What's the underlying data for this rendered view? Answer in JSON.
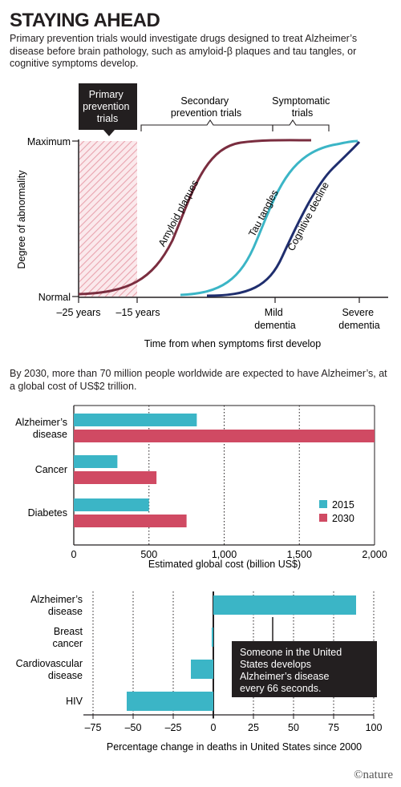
{
  "header": {
    "title": "STAYING AHEAD",
    "subtitle": "Primary prevention trials would investigate drugs designed to treat Alzheimer’s disease before brain pathology, such as amyloid-β plaques and tau tangles, or cognitive symptoms develop."
  },
  "colors": {
    "amyloid": "#7a2d3f",
    "tau": "#3bb5c6",
    "cognitive": "#1f2e6e",
    "bar2015": "#3bb5c6",
    "bar2030": "#d04a63",
    "hatch": "#e8a3ae"
  },
  "chart_data": [
    {
      "type": "line",
      "ylabel": "Degree of abnormality",
      "xlabel": "Time from when symptoms first develop",
      "y_ticks": [
        "Maximum",
        "Normal"
      ],
      "x_ticks": [
        "–25 years",
        "–15 years",
        "Mild dementia",
        "Severe dementia"
      ],
      "phases": {
        "primary": "Primary prevention trials",
        "secondary": "Secondary prevention trials",
        "symptomatic": "Symptomatic trials"
      },
      "series": [
        {
          "name": "Amyloid plaques",
          "color": "#7a2d3f"
        },
        {
          "name": "Tau tangles",
          "color": "#3bb5c6"
        },
        {
          "name": "Cognitive decline",
          "color": "#1f2e6e"
        }
      ]
    },
    {
      "type": "bar",
      "intro": "By 2030, more than 70 million people worldwide are expected to have Alzheimer’s, at a global cost of US$2 trillion.",
      "orientation": "horizontal",
      "categories": [
        "Alzheimer’s disease",
        "Cancer",
        "Diabetes"
      ],
      "series": [
        {
          "name": "2015",
          "values": [
            818,
            290,
            500
          ],
          "color": "#3bb5c6"
        },
        {
          "name": "2030",
          "values": [
            2000,
            550,
            750
          ],
          "color": "#d04a63"
        }
      ],
      "xlim": [
        0,
        2000
      ],
      "x_ticks": [
        "0",
        "500",
        "1,000",
        "1,500",
        "2,000"
      ],
      "xlabel": "Estimated global cost (billion US$)",
      "legend": "bottom-right"
    },
    {
      "type": "bar",
      "orientation": "horizontal",
      "categories": [
        "Alzheimer’s disease",
        "Breast cancer",
        "Cardiovascular disease",
        "HIV"
      ],
      "values": [
        89,
        -1,
        -14,
        -54
      ],
      "xlim": [
        -75,
        100
      ],
      "x_ticks": [
        "–75",
        "–50",
        "–25",
        "0",
        "25",
        "50",
        "75",
        "100"
      ],
      "xlabel": "Percentage change in deaths in United States since 2000",
      "annotation": "Someone in the United States develops Alzheimer’s disease every 66 seconds."
    }
  ],
  "footer": {
    "credit": "©nature"
  }
}
